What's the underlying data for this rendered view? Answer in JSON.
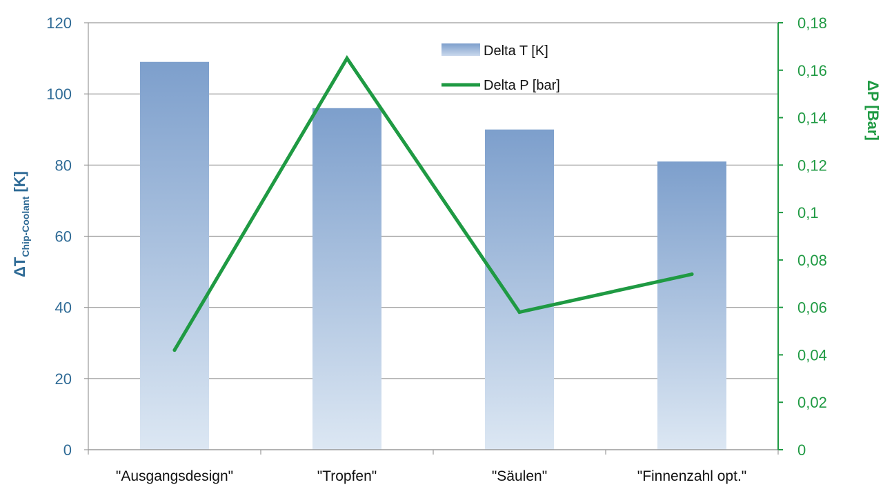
{
  "chart_data": {
    "type": "bar",
    "categories": [
      "\"Ausgangsdesign\"",
      "\"Tropfen\"",
      "\"Säulen\"",
      "\"Finnenzahl opt.\""
    ],
    "series": [
      {
        "name": "Delta T [K]",
        "type": "bar",
        "axis": "left",
        "values": [
          109,
          96,
          90,
          81
        ]
      },
      {
        "name": "Delta P [bar]",
        "type": "line",
        "axis": "right",
        "values": [
          0.042,
          0.165,
          0.058,
          0.074
        ]
      }
    ],
    "ylabel_left_main": "ΔT",
    "ylabel_left_sub": "Chip-Coolant",
    "ylabel_left_unit": " [K]",
    "ylabel_right": "ΔP [Bar]",
    "ylim_left": [
      0,
      120
    ],
    "ylim_right": [
      0,
      0.18
    ],
    "yticks_left": [
      "0",
      "20",
      "40",
      "60",
      "80",
      "100",
      "120"
    ],
    "yticks_right": [
      "0",
      "0,02",
      "0,04",
      "0,06",
      "0,08",
      "0,1",
      "0,12",
      "0,14",
      "0,16",
      "0,18"
    ],
    "grid": true,
    "legend_position": "top-center",
    "colors": {
      "bar_top": "#7d9fcc",
      "bar_bottom": "#dce7f3",
      "line": "#1f9a43",
      "left_axis_text": "#2e6a95",
      "right_axis": "#1f9a43",
      "grid": "#9a9a9a"
    }
  }
}
